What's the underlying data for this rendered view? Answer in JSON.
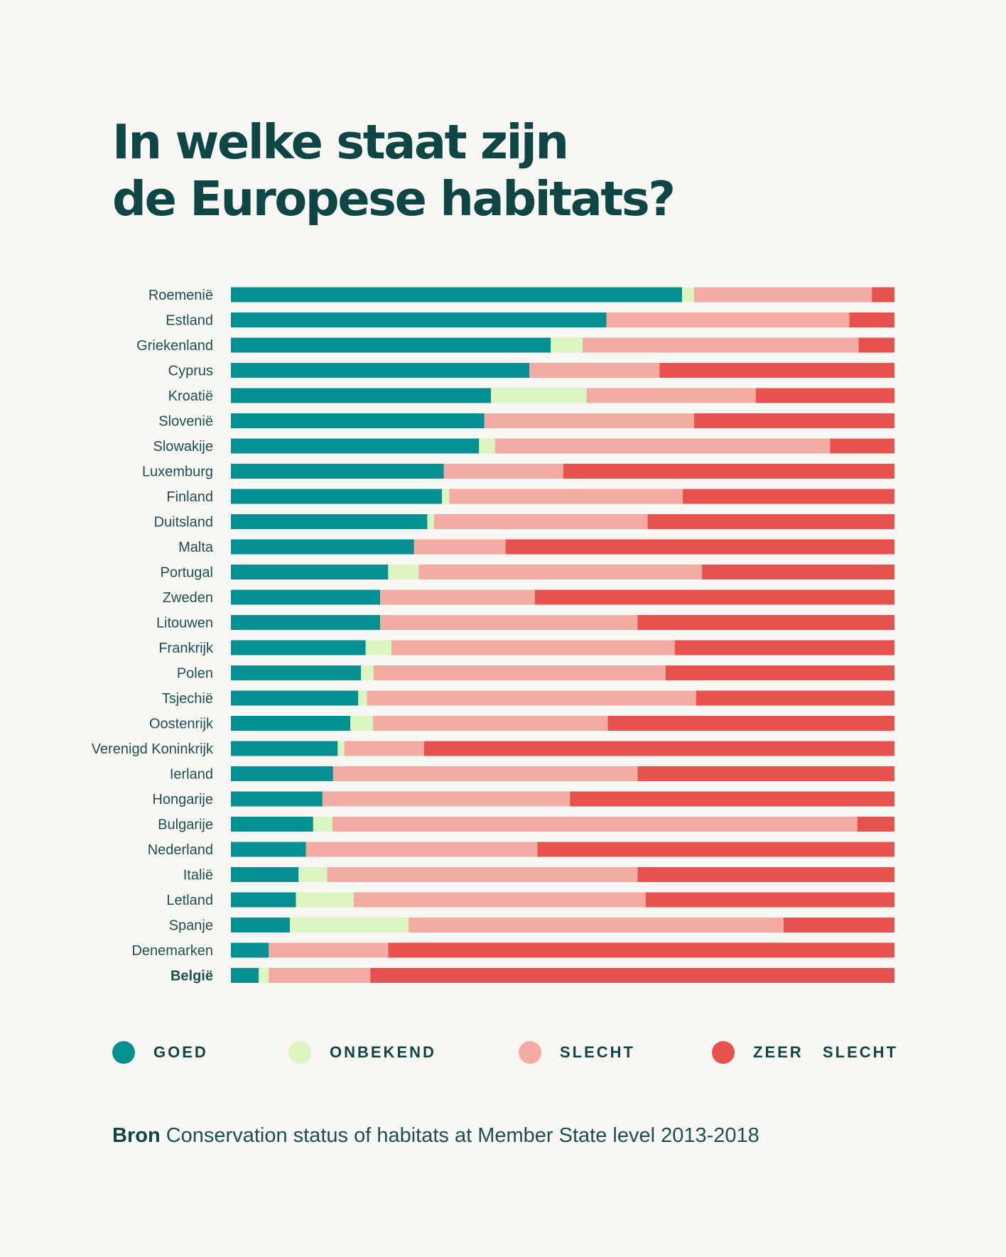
{
  "title": {
    "line1": "In welke staat zijn",
    "line2": "de Europese habitats?"
  },
  "colors": {
    "goed": "#049090",
    "onbekend": "#dcf5c1",
    "slecht": "#f4aba4",
    "zeer_slecht": "#e7524e",
    "text": "#0e4646"
  },
  "legend": [
    {
      "key": "goed",
      "label": "GOED"
    },
    {
      "key": "onbekend",
      "label": "ONBEKEND"
    },
    {
      "key": "slecht",
      "label": "SLECHT"
    },
    {
      "key": "zeer_slecht",
      "label": "ZEER   SLECHT"
    }
  ],
  "chart_data": {
    "type": "bar",
    "orientation": "horizontal",
    "stacked": true,
    "unit": "percent",
    "categories": [
      "Roemenië",
      "Estland",
      "Griekenland",
      "Cyprus",
      "Kroatië",
      "Slovenië",
      "Slowakije",
      "Luxemburg",
      "Finland",
      "Duitsland",
      "Malta",
      "Portugal",
      "Zweden",
      "Litouwen",
      "Frankrijk",
      "Polen",
      "Tsjechië",
      "Oostenrijk",
      "Verenigd Koninkrijk",
      "Ierland",
      "Hongarije",
      "Bulgarije",
      "Nederland",
      "Italië",
      "Letland",
      "Spanje",
      "Denemarken",
      "België"
    ],
    "highlight": "België",
    "series": [
      {
        "name": "GOED",
        "values": [
          68,
          56.6,
          48.2,
          45,
          39.2,
          38.2,
          37.4,
          32.1,
          31.8,
          29.6,
          27.6,
          23.7,
          22.5,
          22.5,
          20.3,
          19.6,
          19.2,
          18,
          16.1,
          15.4,
          13.8,
          12.4,
          11.3,
          10.2,
          9.8,
          8.9,
          5.7,
          4.2
        ]
      },
      {
        "name": "ONBEKEND",
        "values": [
          1.8,
          0,
          4.8,
          0,
          14.4,
          0,
          2.4,
          0,
          1.1,
          1,
          0,
          4.6,
          0,
          0,
          3.9,
          1.9,
          1.3,
          3.4,
          1,
          0,
          0,
          2.9,
          0,
          4.3,
          8.7,
          17.9,
          0,
          1.5
        ]
      },
      {
        "name": "SLECHT",
        "values": [
          26.8,
          36.6,
          41.6,
          19.6,
          25.5,
          31.6,
          50.5,
          18,
          35.2,
          32.2,
          13.8,
          42.7,
          23.3,
          38.8,
          42.7,
          44,
          49.6,
          35.4,
          12,
          45.9,
          37.3,
          79.1,
          34.9,
          46.8,
          44,
          56.5,
          18,
          15.3
        ]
      },
      {
        "name": "ZEER SLECHT",
        "values": [
          3.4,
          6.8,
          5.4,
          35.4,
          20.9,
          30.2,
          9.7,
          49.9,
          31.9,
          37.2,
          58.6,
          29,
          54.2,
          38.7,
          33.1,
          34.5,
          29.9,
          43.2,
          70.9,
          38.7,
          48.9,
          5.6,
          53.8,
          38.7,
          37.5,
          16.7,
          76.3,
          79
        ]
      }
    ],
    "xlim": [
      0,
      100
    ],
    "legend_position": "bottom"
  },
  "source": {
    "label": "Bron",
    "text": " Conservation status of habitats at Member State level 2013-2018"
  }
}
